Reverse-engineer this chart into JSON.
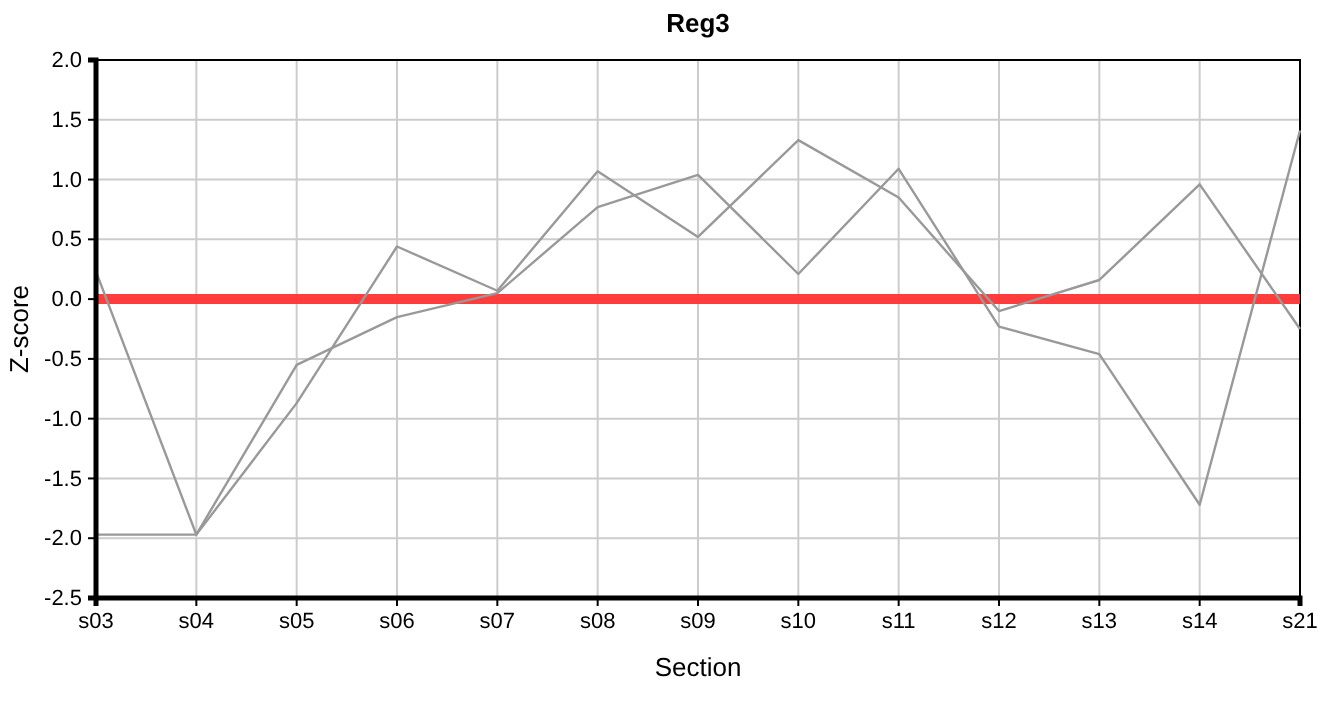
{
  "chart_data": {
    "type": "line",
    "title": "Reg3",
    "xlabel": "Section",
    "ylabel": "Z-score",
    "categories": [
      "s03",
      "s04",
      "s05",
      "s06",
      "s07",
      "s08",
      "s09",
      "s10",
      "s11",
      "s12",
      "s13",
      "s14",
      "s21"
    ],
    "series": [
      {
        "color": "#999999",
        "values": [
          0.23,
          -1.97,
          -0.55,
          -0.15,
          0.05,
          0.77,
          1.04,
          0.21,
          1.09,
          -0.23,
          -0.46,
          -1.72,
          1.41
        ]
      },
      {
        "color": "#999999",
        "values": [
          -1.97,
          -1.97,
          -0.87,
          0.44,
          0.07,
          1.07,
          0.52,
          1.33,
          0.85,
          -0.1,
          0.16,
          0.96,
          -0.25
        ]
      }
    ],
    "ylim": [
      -2.5,
      2
    ],
    "yticks": [
      {
        "value": -2.5,
        "label": "-2.5"
      },
      {
        "value": -2,
        "label": "-2.0"
      },
      {
        "value": -1.5,
        "label": "-1.5"
      },
      {
        "value": -1,
        "label": "-1.0"
      },
      {
        "value": -0.5,
        "label": "-0.5"
      },
      {
        "value": 0,
        "label": "0.0"
      },
      {
        "value": 0.5,
        "label": "0.5"
      },
      {
        "value": 1,
        "label": "1.0"
      },
      {
        "value": 1.5,
        "label": "1.5"
      },
      {
        "value": 2,
        "label": "2.0"
      }
    ],
    "ref_lines": [
      {
        "axis": "y",
        "value": 0,
        "color": "#ff3333"
      }
    ],
    "grid": true,
    "marker": "none",
    "line_style": "solid"
  }
}
